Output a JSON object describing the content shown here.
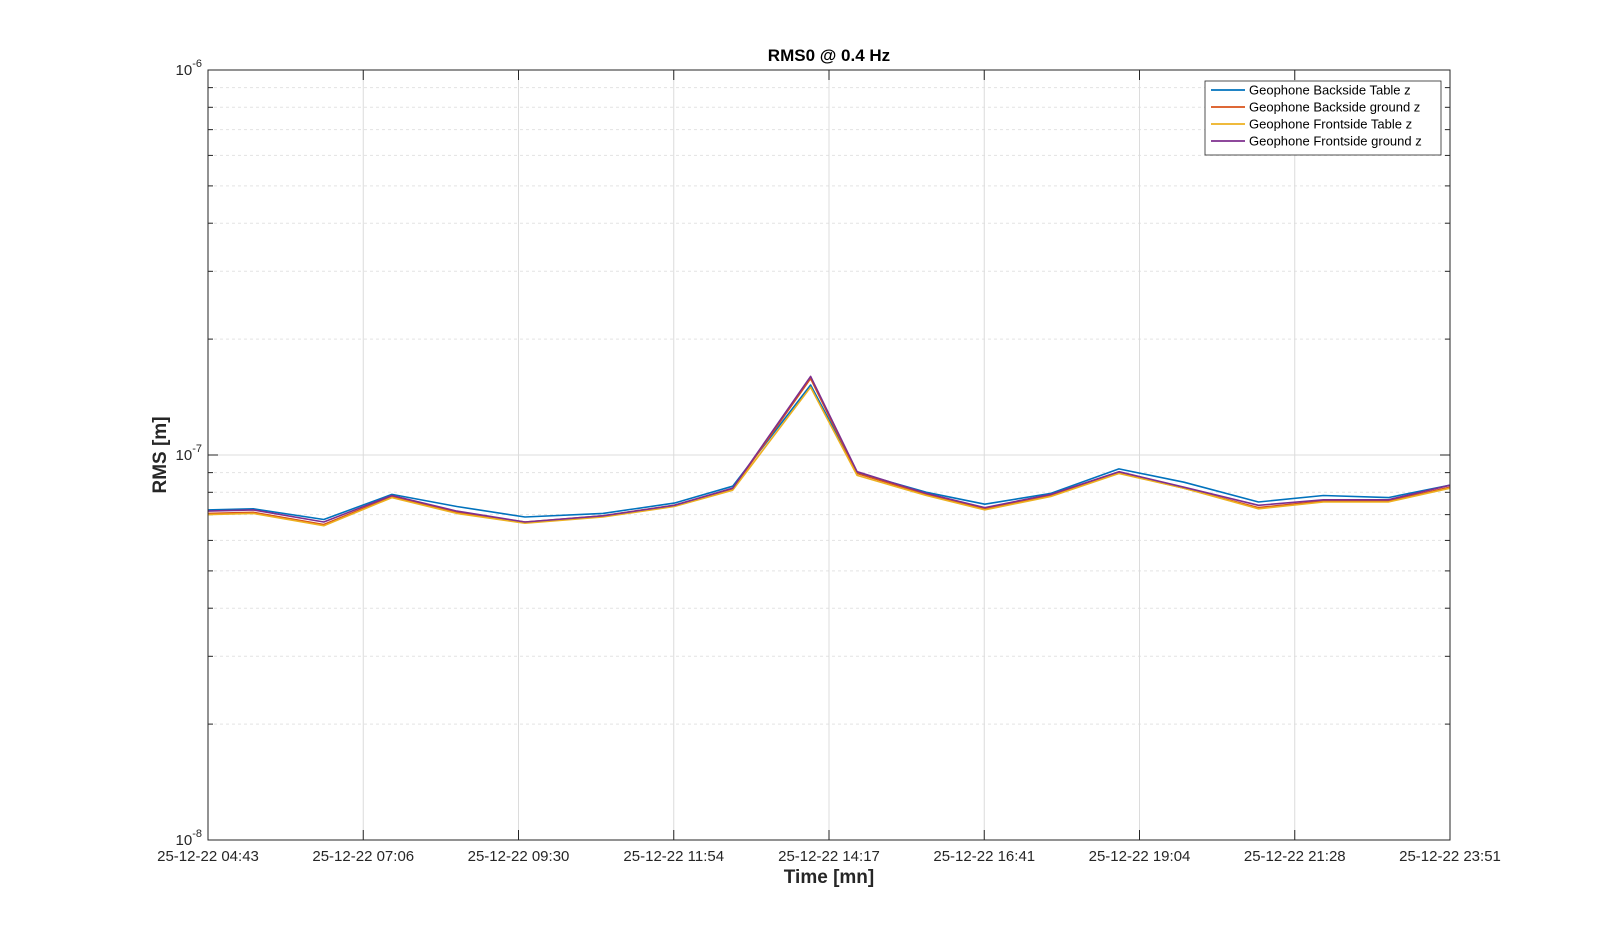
{
  "chart_data": {
    "type": "line",
    "title": "RMS0 @ 0.4 Hz",
    "xlabel": "Time [mn]",
    "ylabel": "RMS [m]",
    "yscale": "log",
    "ylim": [
      1e-08,
      1e-06
    ],
    "y_tick_labels": [
      {
        "base": "10",
        "exp": "-6"
      },
      {
        "base": "10",
        "exp": "-7"
      },
      {
        "base": "10",
        "exp": "-8"
      }
    ],
    "x_tick_labels": [
      "25-12-22 04:43",
      "25-12-22 07:06",
      "25-12-22 09:30",
      "25-12-22 11:54",
      "25-12-22 14:17",
      "25-12-22 16:41",
      "25-12-22 19:04",
      "25-12-22 21:28",
      "25-12-22 23:51"
    ],
    "x": [
      "25-12-22 04:43",
      "25-12-22 05:25",
      "25-12-22 06:30",
      "25-12-22 07:33",
      "25-12-22 08:33",
      "25-12-22 09:36",
      "25-12-22 10:48",
      "25-12-22 11:54",
      "25-12-22 12:48",
      "25-12-22 14:00",
      "25-12-22 14:43",
      "25-12-22 15:47",
      "25-12-22 16:41",
      "25-12-22 17:42",
      "25-12-22 18:45",
      "25-12-22 19:45",
      "25-12-22 20:54",
      "25-12-22 21:54",
      "25-12-22 22:54",
      "25-12-22 23:51"
    ],
    "grid": true,
    "legend_position": "top-right",
    "series": [
      {
        "name": "Geophone Backside Table z",
        "color": "#0072BD",
        "values": [
          7.2e-08,
          7.25e-08,
          6.8e-08,
          7.9e-08,
          7.35e-08,
          6.9e-08,
          7.05e-08,
          7.5e-08,
          8.3e-08,
          1.52e-07,
          9e-08,
          8e-08,
          7.45e-08,
          7.95e-08,
          9.2e-08,
          8.5e-08,
          7.55e-08,
          7.85e-08,
          7.75e-08,
          8.35e-08
        ]
      },
      {
        "name": "Geophone Backside ground z",
        "color": "#D95319",
        "values": [
          7.05e-08,
          7.1e-08,
          6.6e-08,
          7.8e-08,
          7.1e-08,
          6.7e-08,
          6.95e-08,
          7.4e-08,
          8.15e-08,
          1.58e-07,
          8.95e-08,
          7.9e-08,
          7.25e-08,
          7.85e-08,
          9e-08,
          8.2e-08,
          7.3e-08,
          7.6e-08,
          7.6e-08,
          8.25e-08
        ]
      },
      {
        "name": "Geophone Frontside Table z",
        "color": "#EDB120",
        "values": [
          7e-08,
          7.05e-08,
          6.55e-08,
          7.75e-08,
          7.05e-08,
          6.65e-08,
          6.9e-08,
          7.35e-08,
          8.1e-08,
          1.5e-07,
          8.85e-08,
          7.85e-08,
          7.2e-08,
          7.8e-08,
          8.95e-08,
          8.2e-08,
          7.25e-08,
          7.55e-08,
          7.55e-08,
          8.2e-08
        ]
      },
      {
        "name": "Geophone Frontside ground z",
        "color": "#7E2F8E",
        "values": [
          7.15e-08,
          7.2e-08,
          6.7e-08,
          7.85e-08,
          7.15e-08,
          6.7e-08,
          6.95e-08,
          7.4e-08,
          8.2e-08,
          1.6e-07,
          9.05e-08,
          7.95e-08,
          7.3e-08,
          7.9e-08,
          9.05e-08,
          8.25e-08,
          7.4e-08,
          7.65e-08,
          7.65e-08,
          8.35e-08
        ]
      }
    ]
  }
}
